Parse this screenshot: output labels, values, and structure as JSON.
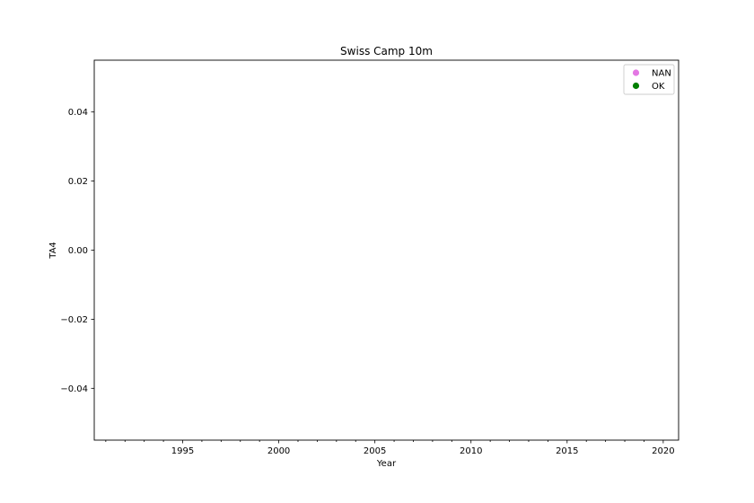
{
  "chart_data": {
    "type": "scatter",
    "title": "Swiss Camp 10m",
    "xlabel": "Year",
    "ylabel": "TA4",
    "xlim": [
      1990.4,
      2020.8
    ],
    "ylim": [
      -0.055,
      0.055
    ],
    "x_major_ticks": [
      1995,
      2000,
      2005,
      2010,
      2015,
      2020
    ],
    "x_tick_labels": [
      "1995",
      "2000",
      "2005",
      "2010",
      "2015",
      "2020"
    ],
    "y_ticks": [
      0.04,
      0.02,
      0.0,
      -0.02,
      -0.04
    ],
    "y_tick_labels": [
      "0.04",
      "0.02",
      "0.00",
      "−0.02",
      "−0.04"
    ],
    "grid": false,
    "legend_position": "top-right",
    "series": [
      {
        "name": "NAN",
        "color": "#e377e3",
        "marker": "circle",
        "x": [],
        "y": []
      },
      {
        "name": "OK",
        "color": "#008000",
        "marker": "circle",
        "x": [],
        "y": []
      }
    ]
  }
}
